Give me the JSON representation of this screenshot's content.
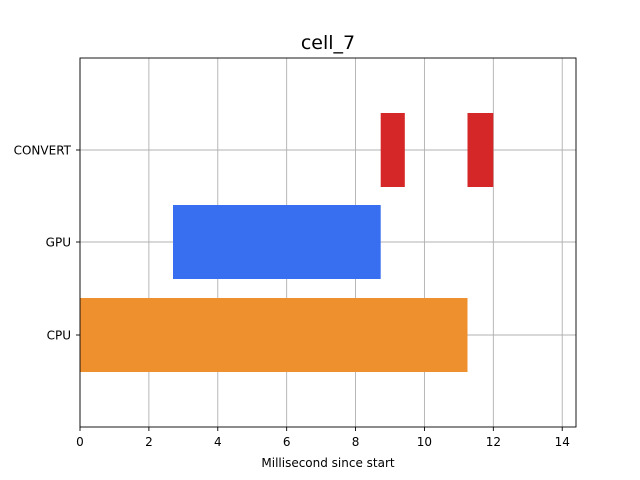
{
  "chart_data": {
    "type": "bar",
    "orientation": "horizontal",
    "title": "cell_7",
    "xlabel": "Millisecond since start",
    "ylabel": "",
    "categories": [
      "CPU",
      "GPU",
      "CONVERT"
    ],
    "xlim": [
      0,
      14.4
    ],
    "xticks": [
      0,
      2,
      4,
      6,
      8,
      10,
      12,
      14
    ],
    "xtick_labels": [
      "0",
      "2",
      "4",
      "6",
      "8",
      "10",
      "12",
      "14"
    ],
    "grid": true,
    "legend": "none",
    "segments": [
      {
        "category": "CPU",
        "start": 0,
        "end": 11.25,
        "color": "#ef902f"
      },
      {
        "category": "GPU",
        "start": 2.7,
        "end": 8.73,
        "color": "#386ff0"
      },
      {
        "category": "CONVERT",
        "start": 8.73,
        "end": 9.43,
        "color": "#d62728"
      },
      {
        "category": "CONVERT",
        "start": 11.25,
        "end": 12.0,
        "color": "#d62728"
      }
    ]
  }
}
